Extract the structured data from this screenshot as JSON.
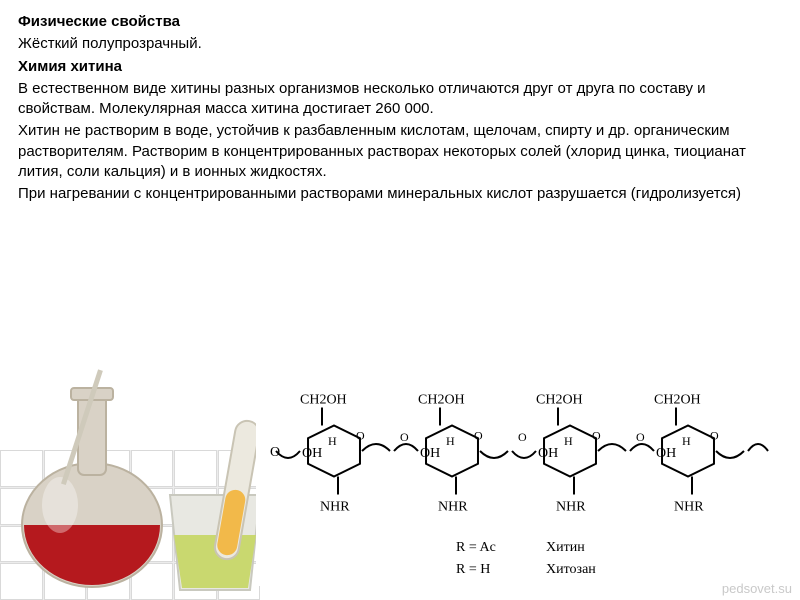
{
  "text": {
    "h1": "Физические свойства",
    "p1": "Жёсткий полупрозрачный.",
    "h2": "Химия хитина",
    "p2": "В естественном виде хитины разных организмов несколько отличаются друг от друга по составу и свойствам. Молекулярная масса хитина достигает 260 000.",
    "p3": "Хитин не растворим в воде, устойчив к разбавленным кислотам, щелочам, спирту и др. органическим растворителям. Растворим в концентрированных растворах некоторых солей (хлорид цинка, тиоцианат лития, соли кальция) и в ионных жидкостях.",
    "p4": "При нагревании с концентрированными растворами минеральных кислот разрушается (гидролизуется)"
  },
  "watermark": "pedsovet.su",
  "structure": {
    "type": "chemical-structure",
    "monomer_count": 4,
    "labels": {
      "top": "CH₂OH",
      "left": "OH",
      "bottom": "NHR"
    },
    "legend": [
      {
        "lhs": "R = Ac",
        "rhs": "Хитин"
      },
      {
        "lhs": "R = H",
        "rhs": "Хитозан"
      }
    ],
    "colors": {
      "stroke": "#000000",
      "text": "#000000",
      "font_family": "Times New Roman",
      "label_fontsize": 14,
      "legend_fontsize": 14
    }
  },
  "glassware": {
    "flask_liquid_color": "#b5191e",
    "flask_glass_color": "#d9d2c6",
    "beaker_liquid_color": "#c9d86f",
    "tube_liquid_color": "#f2b94a"
  }
}
